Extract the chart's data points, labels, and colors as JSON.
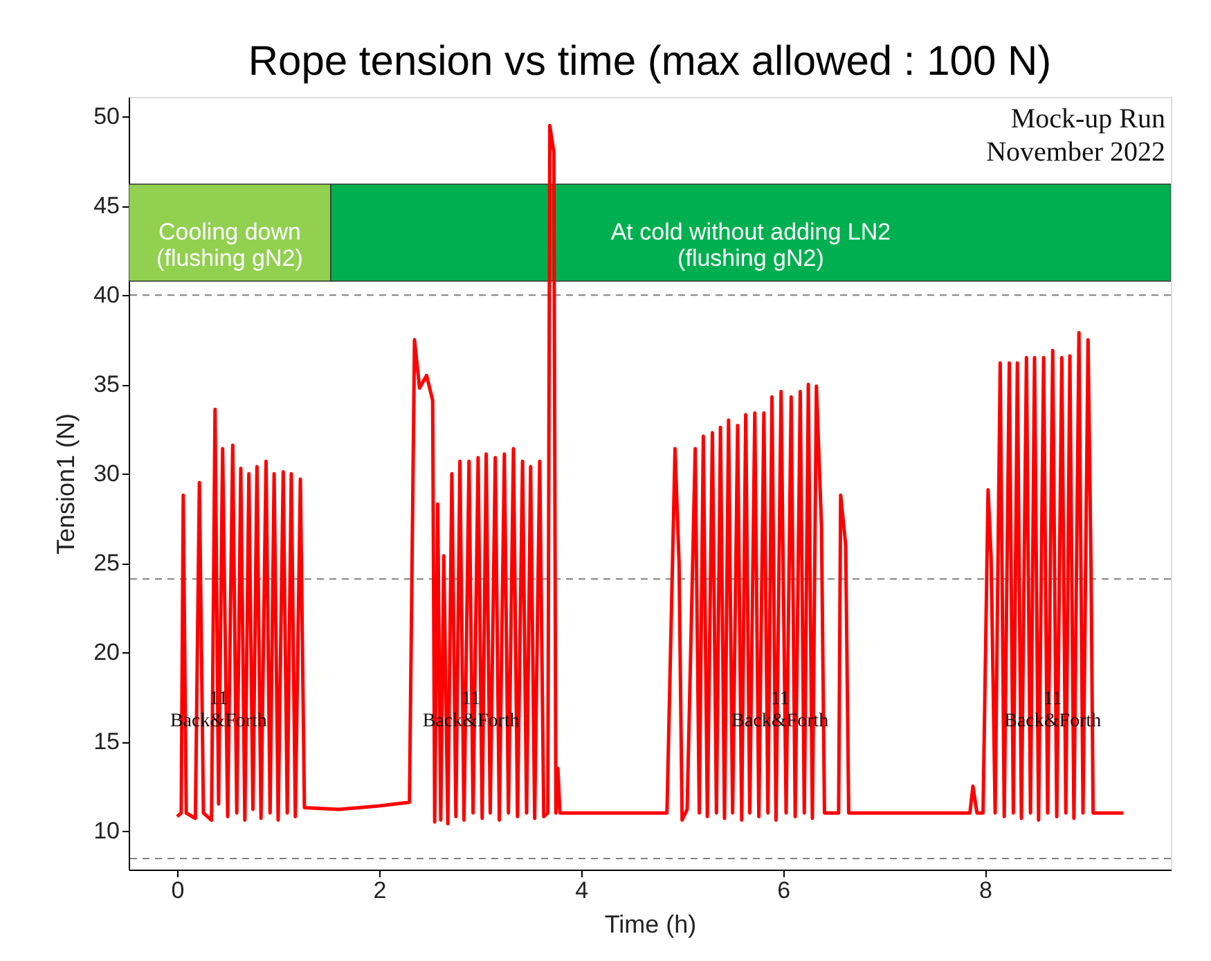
{
  "chart_data": {
    "type": "line",
    "title": "Rope tension vs time (max allowed : 100 N)",
    "xlabel": "Time (h)",
    "ylabel": "Tension1 (N)",
    "xlim": [
      -0.48,
      9.84
    ],
    "ylim": [
      7.83,
      51.1
    ],
    "xticks": [
      0,
      2,
      4,
      6,
      8
    ],
    "yticks": [
      10,
      15,
      20,
      25,
      30,
      35,
      40,
      45,
      50
    ],
    "grid": false,
    "marker": "none",
    "line_style": "solid",
    "series": [
      {
        "color": "#ff0000",
        "x": [
          0.0,
          0.04,
          0.06,
          0.09,
          0.18,
          0.22,
          0.26,
          0.34,
          0.375,
          0.41,
          0.45,
          0.5,
          0.55,
          0.59,
          0.63,
          0.67,
          0.71,
          0.75,
          0.79,
          0.83,
          0.88,
          0.92,
          0.96,
          1.0,
          1.05,
          1.09,
          1.13,
          1.17,
          1.22,
          1.26,
          1.6,
          2.0,
          2.3,
          2.35,
          2.4,
          2.47,
          2.53,
          2.55,
          2.58,
          2.61,
          2.64,
          2.68,
          2.72,
          2.76,
          2.8,
          2.84,
          2.89,
          2.93,
          2.98,
          3.02,
          3.06,
          3.1,
          3.15,
          3.19,
          3.24,
          3.28,
          3.33,
          3.37,
          3.42,
          3.46,
          3.5,
          3.54,
          3.59,
          3.63,
          3.67,
          3.69,
          3.73,
          3.75,
          3.77,
          3.79,
          4.3,
          4.85,
          4.93,
          4.97,
          5.0,
          5.05,
          5.13,
          5.17,
          5.21,
          5.25,
          5.3,
          5.34,
          5.38,
          5.42,
          5.46,
          5.5,
          5.55,
          5.59,
          5.63,
          5.67,
          5.72,
          5.76,
          5.81,
          5.85,
          5.89,
          5.93,
          5.98,
          6.03,
          6.08,
          6.12,
          6.17,
          6.21,
          6.25,
          6.29,
          6.33,
          6.38,
          6.41,
          6.55,
          6.57,
          6.62,
          6.65,
          7.3,
          7.85,
          7.88,
          7.92,
          7.98,
          8.03,
          8.06,
          8.1,
          8.15,
          8.19,
          8.24,
          8.28,
          8.32,
          8.36,
          8.41,
          8.45,
          8.49,
          8.53,
          8.58,
          8.62,
          8.67,
          8.71,
          8.76,
          8.8,
          8.84,
          8.88,
          8.93,
          8.97,
          9.02,
          9.05,
          9.07,
          9.37
        ],
        "values": [
          10.8,
          11.0,
          28.8,
          11.0,
          10.7,
          29.5,
          11.0,
          10.6,
          33.6,
          11.5,
          31.4,
          10.8,
          31.6,
          11.0,
          30.3,
          10.6,
          30.0,
          11.2,
          30.4,
          10.7,
          30.7,
          11.0,
          30.0,
          10.6,
          30.1,
          11.0,
          30.0,
          10.8,
          29.7,
          11.3,
          11.2,
          11.4,
          11.6,
          37.5,
          34.8,
          35.5,
          34.1,
          10.5,
          28.3,
          10.6,
          25.4,
          10.4,
          30.0,
          10.8,
          30.7,
          10.6,
          30.7,
          11.0,
          30.9,
          10.7,
          31.1,
          11.0,
          30.9,
          10.6,
          31.1,
          11.0,
          31.4,
          10.8,
          30.7,
          11.0,
          30.4,
          10.7,
          30.7,
          10.8,
          11.0,
          49.5,
          48.0,
          11.0,
          13.5,
          11.0,
          11.0,
          11.0,
          31.4,
          25.0,
          10.6,
          11.2,
          31.4,
          11.0,
          32.1,
          10.8,
          32.3,
          11.0,
          32.6,
          10.7,
          33.0,
          11.0,
          32.7,
          10.6,
          33.3,
          11.0,
          33.4,
          10.8,
          33.4,
          11.0,
          34.3,
          10.6,
          34.6,
          11.0,
          34.3,
          10.8,
          34.6,
          11.0,
          35.0,
          10.7,
          34.9,
          27.1,
          11.0,
          11.0,
          28.8,
          26.0,
          11.0,
          11.0,
          11.0,
          12.5,
          11.0,
          11.0,
          29.1,
          25.3,
          11.0,
          36.2,
          10.8,
          36.2,
          11.0,
          36.2,
          10.7,
          36.5,
          11.0,
          36.5,
          10.6,
          36.5,
          11.0,
          36.9,
          10.8,
          36.5,
          11.0,
          36.6,
          10.7,
          37.9,
          11.0,
          37.5,
          24.5,
          11.0,
          11.0
        ]
      }
    ],
    "ref_lines": [
      {
        "axis": "y",
        "value": 40,
        "color": "#808080",
        "line_style": "dashed"
      },
      {
        "axis": "y",
        "value": 24.1,
        "color": "#808080",
        "line_style": "dashed"
      },
      {
        "axis": "y",
        "value": 8.45,
        "color": "#808080",
        "line_style": "dashed"
      }
    ],
    "bands": [
      {
        "axis": "x",
        "from": -0.48,
        "to": 1.52,
        "label": "Cooling down\n(flushing gN2)",
        "color": "#92d050"
      },
      {
        "axis": "x",
        "from": 1.52,
        "to": 9.84,
        "label": "At cold without adding LN2\n(flushing gN2)",
        "color": "#00b050"
      }
    ],
    "annotations": [
      "Mock-up Run\nNovember 2022",
      {
        "text": "11\nBack&Forth",
        "x": 0.41,
        "y": 17.4
      },
      {
        "text": "11\nBack&Forth",
        "x": 2.91,
        "y": 17.4
      },
      {
        "text": "11\nBack&Forth",
        "x": 5.97,
        "y": 17.4
      },
      {
        "text": "11\nBack&Forth",
        "x": 8.67,
        "y": 17.4
      }
    ]
  }
}
